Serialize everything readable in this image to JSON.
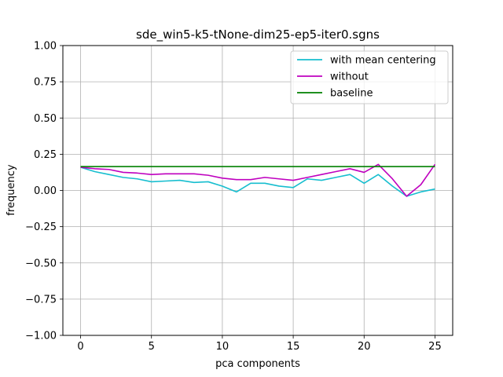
{
  "chart_data": {
    "type": "line",
    "title": "sde_win5-k5-tNone-dim25-ep5-iter0.sgns",
    "xlabel": "pca components",
    "ylabel": "frequency",
    "xlim": [
      -1.25,
      26.25
    ],
    "ylim": [
      -1.0,
      1.0
    ],
    "xticks": [
      0,
      5,
      10,
      15,
      20,
      25
    ],
    "xtick_labels": [
      "0",
      "5",
      "10",
      "15",
      "20",
      "25"
    ],
    "yticks": [
      -1.0,
      -0.75,
      -0.5,
      -0.25,
      0.0,
      0.25,
      0.5,
      0.75,
      1.0
    ],
    "ytick_labels": [
      "−1.00",
      "−0.75",
      "−0.50",
      "−0.25",
      "0.00",
      "0.25",
      "0.50",
      "0.75",
      "1.00"
    ],
    "grid": true,
    "legend_position": "top-right",
    "x": [
      0,
      1,
      2,
      3,
      4,
      5,
      6,
      7,
      8,
      9,
      10,
      11,
      12,
      13,
      14,
      15,
      16,
      17,
      18,
      19,
      20,
      21,
      22,
      23,
      24,
      25
    ],
    "series": [
      {
        "name": "with mean centering",
        "color": "#17becf",
        "values": [
          0.16,
          0.13,
          0.11,
          0.09,
          0.08,
          0.06,
          0.065,
          0.07,
          0.055,
          0.06,
          0.03,
          -0.01,
          0.05,
          0.05,
          0.03,
          0.02,
          0.08,
          0.07,
          0.09,
          0.11,
          0.05,
          0.11,
          0.03,
          -0.04,
          -0.01,
          0.01
        ]
      },
      {
        "name": "without",
        "color": "#bf00bf",
        "values": [
          0.16,
          0.15,
          0.145,
          0.125,
          0.12,
          0.11,
          0.115,
          0.115,
          0.115,
          0.105,
          0.085,
          0.075,
          0.075,
          0.09,
          0.08,
          0.07,
          0.09,
          0.11,
          0.13,
          0.15,
          0.125,
          0.18,
          0.08,
          -0.04,
          0.04,
          0.18
        ]
      },
      {
        "name": "baseline",
        "color": "#008000",
        "values": [
          0.165,
          0.165,
          0.165,
          0.165,
          0.165,
          0.165,
          0.165,
          0.165,
          0.165,
          0.165,
          0.165,
          0.165,
          0.165,
          0.165,
          0.165,
          0.165,
          0.165,
          0.165,
          0.165,
          0.165,
          0.165,
          0.165,
          0.165,
          0.165,
          0.165,
          0.165
        ]
      }
    ]
  }
}
